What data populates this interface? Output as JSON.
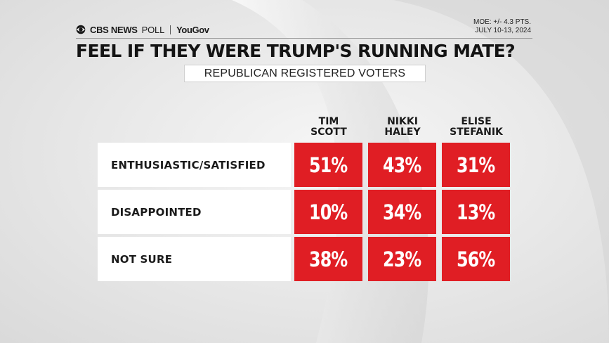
{
  "header": {
    "brand_cbs": "CBS NEWS",
    "brand_poll": "POLL",
    "brand_partner": "YouGov",
    "moe_line1": "MOE: +/- 4.3 PTS.",
    "moe_line2": "JULY 10-13, 2024"
  },
  "colors": {
    "accent": "#e01e24",
    "background": "#e6e6e6",
    "text": "#141414"
  },
  "chart_data": {
    "type": "table",
    "title": "FEEL IF THEY WERE TRUMP'S RUNNING MATE?",
    "subtitle": "REPUBLICAN REGISTERED VOTERS",
    "columns": [
      {
        "line1": "TIM",
        "line2": "SCOTT"
      },
      {
        "line1": "NIKKI",
        "line2": "HALEY"
      },
      {
        "line1": "ELISE",
        "line2": "STEFANIK"
      }
    ],
    "rows": [
      {
        "label": "ENTHUSIASTIC/SATISFIED",
        "values": [
          "51%",
          "43%",
          "31%"
        ]
      },
      {
        "label": "DISAPPOINTED",
        "values": [
          "10%",
          "34%",
          "13%"
        ]
      },
      {
        "label": "NOT SURE",
        "values": [
          "38%",
          "23%",
          "56%"
        ]
      }
    ]
  }
}
